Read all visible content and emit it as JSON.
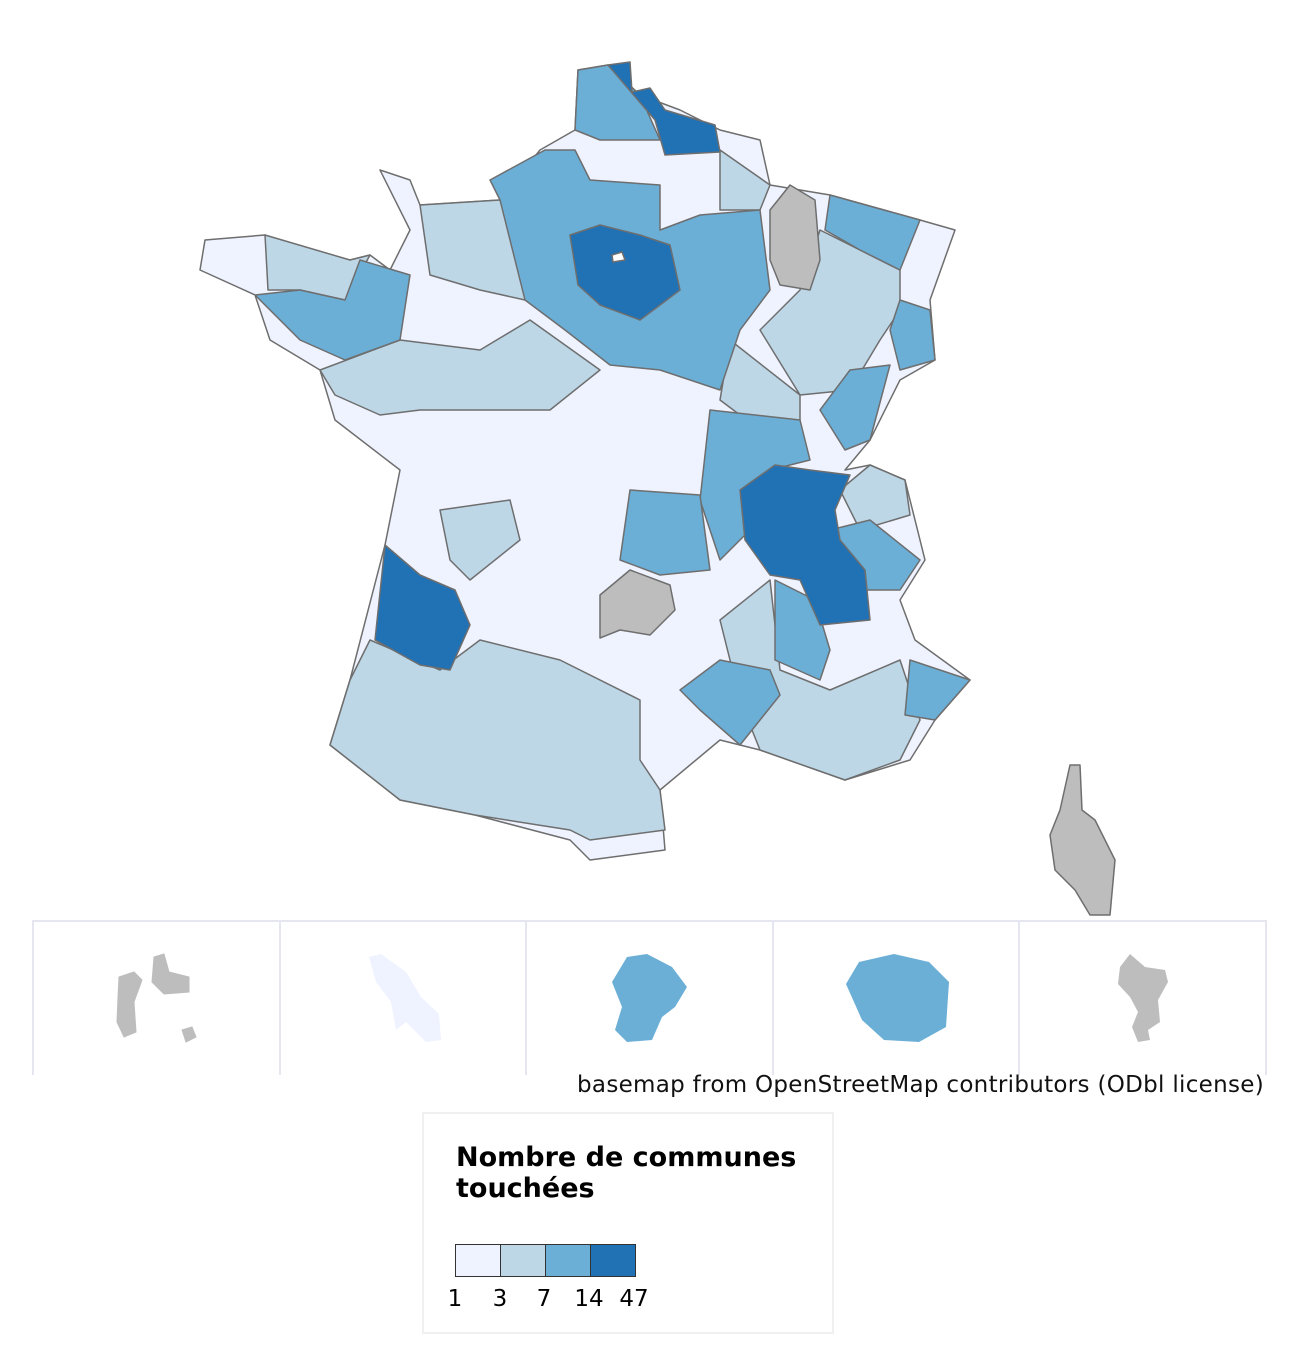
{
  "map": {
    "attribution": "basemap from OpenStreetMap contributors (ODbl license)",
    "no_data_color": "#bdbdbd",
    "border_color": "#6e6e6e",
    "insets": [
      {
        "name": "guadeloupe",
        "class": "nodata"
      },
      {
        "name": "martinique",
        "class": 0
      },
      {
        "name": "guyane",
        "class": 2
      },
      {
        "name": "reunion",
        "class": 2
      },
      {
        "name": "mayotte",
        "class": "nodata"
      }
    ]
  },
  "legend": {
    "title": "Nombre de communes touchées",
    "breaks": [
      "1",
      "3",
      "7",
      "14",
      "47"
    ],
    "colors": [
      "#eff3ff",
      "#bdd7e7",
      "#6baed6",
      "#2171b5"
    ]
  }
}
